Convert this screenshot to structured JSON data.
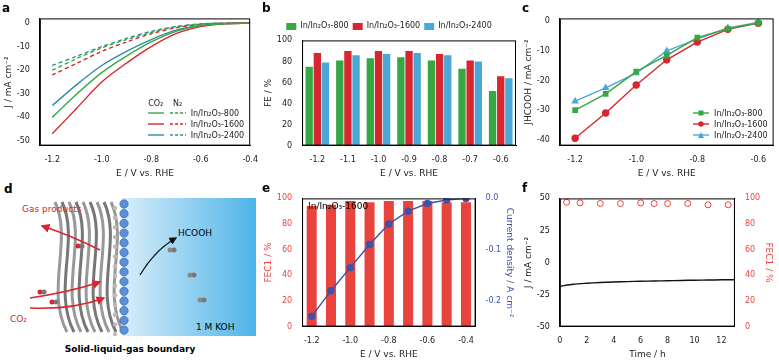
{
  "chart_data": [
    {
      "type": "line",
      "title": "a",
      "x_label": "E / V vs. RHE",
      "y_label": "J / mA cm⁻²",
      "x": [
        -1.2,
        -1.1,
        -1.0,
        -0.9,
        -0.8,
        -0.7,
        -0.6,
        -0.5,
        -0.4
      ],
      "xlim": [
        -1.25,
        -0.4
      ],
      "xticks": [
        -1.2,
        {
          "value": -1,
          "label": "-1.0"
        },
        -0.8,
        -0.6,
        -0.4
      ],
      "ylim": [
        -52,
        2
      ],
      "yticks": [
        -50,
        -40,
        -30,
        -20,
        -10,
        0
      ],
      "grid": false,
      "legend": "lower right",
      "series": [
        {
          "name": "In/In₂O₃-800",
          "atmosphere": "CO₂",
          "color": "#35a844",
          "line_style": "solid",
          "marker": "none",
          "values": [
            -40,
            -30,
            -21,
            -14,
            -8,
            -3.5,
            -1,
            -0.2,
            0
          ]
        },
        {
          "name": "In/In₂O₃-1600",
          "atmosphere": "CO₂",
          "color": "#d7262f",
          "line_style": "solid",
          "marker": "none",
          "values": [
            -47,
            -36,
            -25,
            -17,
            -10,
            -4.5,
            -1.5,
            -0.3,
            0
          ]
        },
        {
          "name": "In/In₂O₃-2400",
          "atmosphere": "CO₂",
          "color": "#2f8f9d",
          "line_style": "solid",
          "marker": "none",
          "values": [
            -35,
            -26,
            -18,
            -12,
            -7,
            -3,
            -1,
            -0.2,
            0
          ]
        },
        {
          "name": "In/In₂O₃-800",
          "atmosphere": "N₂",
          "color": "#35a844",
          "line_style": "dashed",
          "marker": "none",
          "values": [
            -20,
            -15,
            -10.5,
            -7,
            -4,
            -1.5,
            -0.5,
            0,
            0
          ]
        },
        {
          "name": "In/In₂O₃-1600",
          "atmosphere": "N₂",
          "color": "#d7262f",
          "line_style": "dashed",
          "marker": "none",
          "values": [
            -22,
            -17,
            -12,
            -8,
            -4.5,
            -2,
            -0.5,
            0,
            0
          ]
        },
        {
          "name": "In/In₂O₃-2400",
          "atmosphere": "N₂",
          "color": "#2f8f9d",
          "line_style": "dashed",
          "marker": "none",
          "values": [
            -18,
            -14,
            -10,
            -6.5,
            -3.5,
            -1.5,
            -0.3,
            0,
            0
          ]
        }
      ]
    },
    {
      "type": "bar",
      "title": "b",
      "x_label": "E / V vs. RHE",
      "y_label": "FE / %",
      "categories": [
        "-1.2",
        "-1.1",
        "-1.0",
        "-0.9",
        "-0.8",
        "-0.7",
        "-0.6"
      ],
      "ylim": [
        0,
        100
      ],
      "yticks": [
        0,
        20,
        40,
        60,
        80,
        100
      ],
      "grid": false,
      "legend": "top",
      "series": [
        {
          "name": "In/In₂O₃-800",
          "color": "#35a844",
          "values": [
            75,
            81,
            83,
            84,
            81,
            73,
            52
          ]
        },
        {
          "name": "In/In₂O₃-1600",
          "color": "#d7262f",
          "values": [
            88,
            90,
            90,
            90,
            87,
            81,
            66
          ]
        },
        {
          "name": "In/In₂O₃-2400",
          "color": "#4aa8d8",
          "values": [
            79,
            86,
            87,
            88,
            86,
            80,
            64
          ]
        }
      ]
    },
    {
      "type": "line",
      "title": "c",
      "x_label": "E / V vs. RHE",
      "y_label": "JHCOOH / mA cm⁻²",
      "x": [
        -1.2,
        -1.1,
        -1.0,
        -0.9,
        -0.8,
        -0.7,
        -0.6
      ],
      "xlim": [
        -1.25,
        -0.55
      ],
      "xticks": [
        -1.2,
        {
          "value": -1,
          "label": "-1.0"
        },
        -0.8,
        -0.6
      ],
      "ylim": [
        -42,
        1
      ],
      "yticks": [
        -40,
        -30,
        -20,
        -10,
        0
      ],
      "grid": false,
      "legend": "lower right",
      "series": [
        {
          "name": "In/In₂O₃-800",
          "color": "#35a844",
          "marker": "square",
          "line_style": "solid",
          "values": [
            -30,
            -24.5,
            -17,
            -11.5,
            -5.5,
            -2.5,
            -0.5
          ]
        },
        {
          "name": "In/In₂O₃-1600",
          "color": "#d7262f",
          "marker": "circle",
          "line_style": "solid",
          "values": [
            -39.5,
            -31,
            -21.5,
            -13,
            -7,
            -2.7,
            -0.6
          ]
        },
        {
          "name": "In/In₂O₃-2400",
          "color": "#4aa8d8",
          "marker": "triangle",
          "line_style": "solid",
          "values": [
            -27,
            -22.5,
            -17.5,
            -10,
            -6,
            -2.2,
            -0.4
          ]
        }
      ]
    },
    {
      "type": "bar",
      "title": "e",
      "x_label": "E / V vs. RHE",
      "y_label": "FEC1 / %",
      "y2_label": "Current density / A cm⁻²",
      "annotation": "In/In₂O₃-1600",
      "categories": [
        "-1.2",
        null,
        "-1.0",
        null,
        "-0.8",
        null,
        "-0.6",
        null,
        "-0.4"
      ],
      "ylim": [
        0,
        100
      ],
      "yticks": [
        0,
        20,
        40,
        60,
        80,
        100
      ],
      "y2lim": [
        -0.25,
        0
      ],
      "y2ticks": [
        -0.2,
        -0.1,
        {
          "value": 0,
          "label": "0.0"
        }
      ],
      "grid": false,
      "series": [
        {
          "type": "bar",
          "color": "#e8433d",
          "values": [
            94,
            95,
            98,
            97,
            98,
            98,
            98,
            97,
            97
          ]
        },
        {
          "type": "line",
          "axis": "y2",
          "color": "#3f51a8",
          "marker": "circle",
          "line_style": "solid",
          "values": [
            -0.23,
            -0.18,
            -0.135,
            -0.09,
            -0.05,
            -0.025,
            -0.01,
            -0.003,
            0
          ]
        }
      ]
    },
    {
      "type": "line",
      "title": "f",
      "x_label": "Time / h",
      "y_label": "J / mA cm⁻²",
      "y2_label": "FEC1 / %",
      "xlim": [
        0,
        13
      ],
      "xticks": [
        0,
        2,
        4,
        6,
        8,
        10,
        12
      ],
      "ylim": [
        -50,
        50
      ],
      "yticks": [
        -50,
        -25,
        0,
        25,
        50
      ],
      "y2lim": [
        0,
        100
      ],
      "y2ticks": [
        0,
        20,
        40,
        60,
        80,
        100
      ],
      "grid": false,
      "series": [
        {
          "color": "#111111",
          "marker": "none",
          "line_style": "solid",
          "x": [
            0,
            1,
            2,
            3,
            4,
            5,
            6,
            7,
            8,
            9,
            10,
            11,
            12,
            13
          ],
          "values": [
            -18.5,
            -17,
            -16.2,
            -15.6,
            -15.2,
            -14.9,
            -14.6,
            -14.4,
            -14.2,
            -14,
            -13.8,
            -13.7,
            -13.5,
            -13.4
          ]
        },
        {
          "axis": "y2",
          "color": "#e8433d",
          "marker": "open_circle",
          "line_style": "none",
          "x": [
            0.5,
            1.5,
            3,
            4.5,
            6,
            7,
            8,
            9.5,
            11,
            12.5
          ],
          "values": [
            97,
            96.5,
            96,
            96,
            96.5,
            96,
            96,
            96,
            95,
            95
          ]
        }
      ]
    }
  ],
  "diagram": {
    "title": "d",
    "labels": {
      "gas_products": "Gas products",
      "co2": "CO₂",
      "hcooh": "HCOOH",
      "electrolyte": "1 M KOH",
      "caption": "Solid-liquid-gas boundary"
    }
  }
}
